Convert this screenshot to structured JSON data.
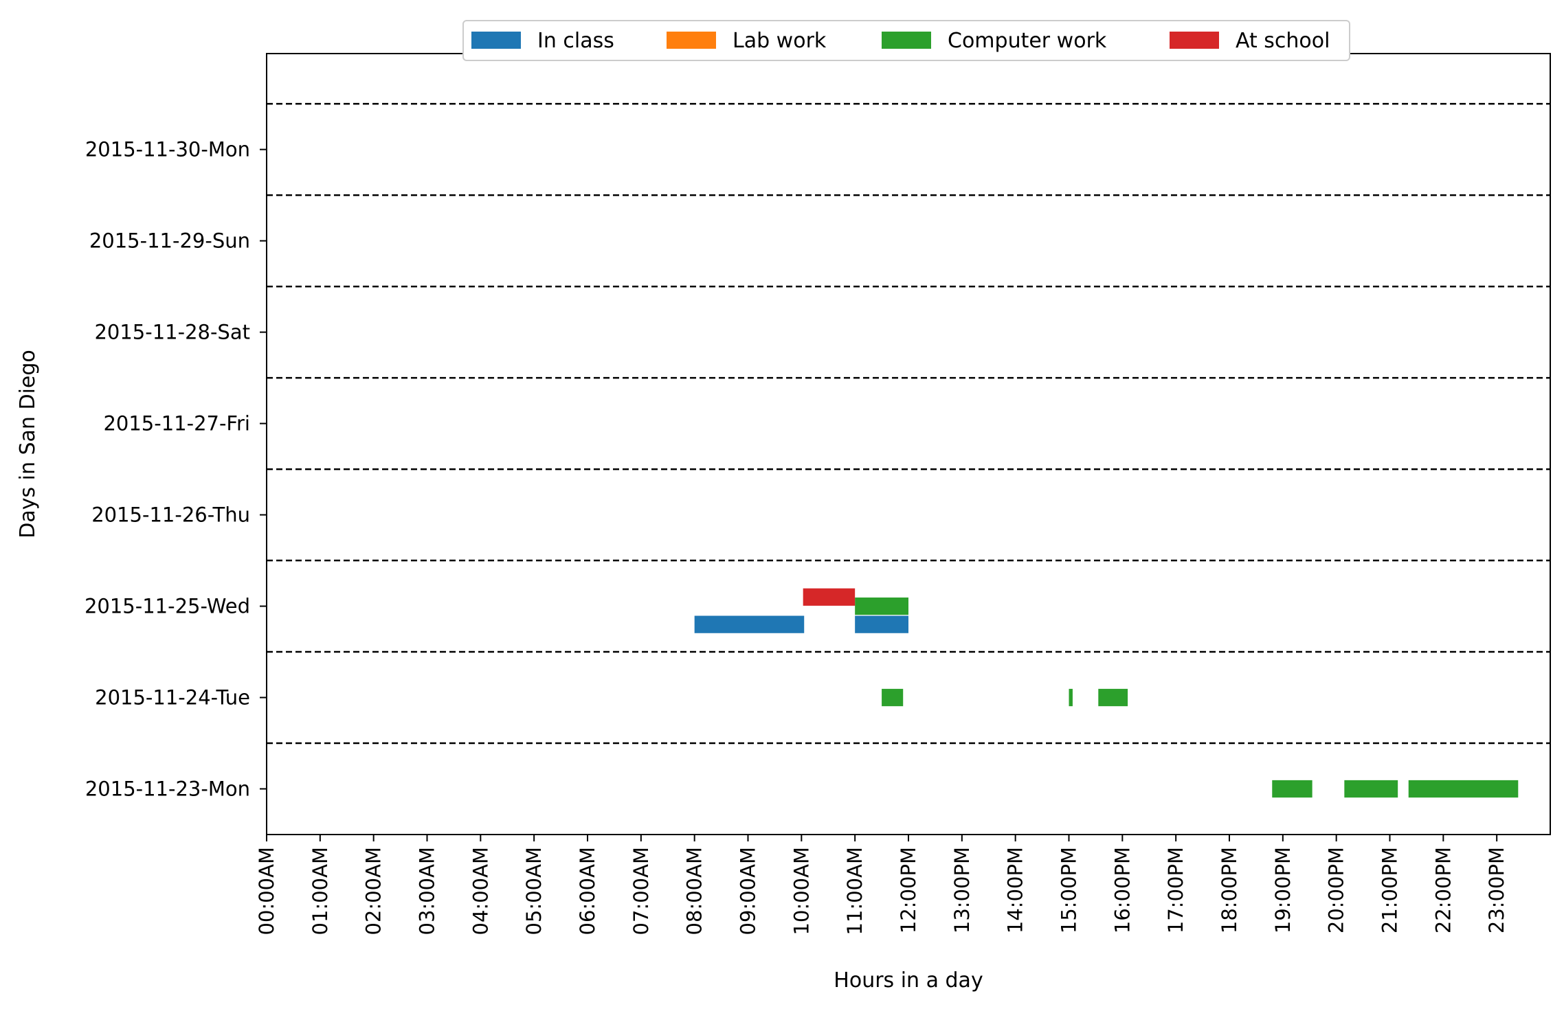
{
  "chart_data": {
    "type": "bar",
    "orientation": "horizontal-timeline",
    "title": "",
    "xlabel": "Hours in a day",
    "ylabel": "Days in San Diego",
    "xlim": [
      0,
      24
    ],
    "x_ticks": [
      "00:00AM",
      "01:00AM",
      "02:00AM",
      "03:00AM",
      "04:00AM",
      "05:00AM",
      "06:00AM",
      "07:00AM",
      "08:00AM",
      "09:00AM",
      "10:00AM",
      "11:00AM",
      "12:00PM",
      "13:00PM",
      "14:00PM",
      "15:00PM",
      "16:00PM",
      "17:00PM",
      "18:00PM",
      "19:00PM",
      "20:00PM",
      "21:00PM",
      "22:00PM",
      "23:00PM"
    ],
    "categories": [
      "2015-11-23-Mon",
      "2015-11-24-Tue",
      "2015-11-25-Wed",
      "2015-11-26-Thu",
      "2015-11-27-Fri",
      "2015-11-28-Sat",
      "2015-11-29-Sun",
      "2015-11-30-Mon"
    ],
    "grid": "dashed separators between days",
    "legend_position": "top-center",
    "series": [
      {
        "name": "In class",
        "color": "#1f77b4",
        "offset": -0.2,
        "segments": [
          {
            "day": "2015-11-25-Wed",
            "start": 8.0,
            "end": 10.05
          },
          {
            "day": "2015-11-25-Wed",
            "start": 11.0,
            "end": 12.0
          }
        ]
      },
      {
        "name": "Lab work",
        "color": "#ff7f0e",
        "offset": 0.0,
        "segments": []
      },
      {
        "name": "Computer work",
        "color": "#2ca02c",
        "offset": 0.0,
        "segments": [
          {
            "day": "2015-11-25-Wed",
            "start": 11.0,
            "end": 12.0
          },
          {
            "day": "2015-11-24-Tue",
            "start": 11.5,
            "end": 11.9
          },
          {
            "day": "2015-11-24-Tue",
            "start": 15.0,
            "end": 15.07
          },
          {
            "day": "2015-11-24-Tue",
            "start": 15.55,
            "end": 16.1
          },
          {
            "day": "2015-11-23-Mon",
            "start": 18.8,
            "end": 19.55
          },
          {
            "day": "2015-11-23-Mon",
            "start": 20.15,
            "end": 21.15
          },
          {
            "day": "2015-11-23-Mon",
            "start": 21.35,
            "end": 23.4
          }
        ]
      },
      {
        "name": "At school",
        "color": "#d62728",
        "offset": 0.1,
        "segments": [
          {
            "day": "2015-11-25-Wed",
            "start": 10.03,
            "end": 11.0
          }
        ]
      }
    ]
  }
}
